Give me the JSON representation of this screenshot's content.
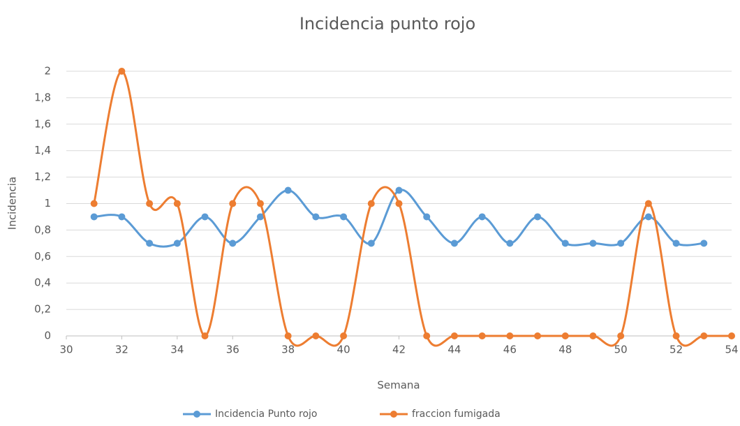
{
  "chart_data": {
    "type": "scatter",
    "title": "Incidencia punto rojo",
    "xlabel": "Semana",
    "ylabel": "Incidencia",
    "xlim": [
      30,
      54
    ],
    "xticks": [
      30,
      32,
      34,
      36,
      38,
      40,
      42,
      44,
      46,
      48,
      50,
      52,
      54
    ],
    "ylim": [
      0,
      2
    ],
    "yticks": [
      0,
      {
        "value": 0.2,
        "label": "0,2"
      },
      {
        "value": 0.4,
        "label": "0,4"
      },
      {
        "value": 0.6,
        "label": "0,6"
      },
      {
        "value": 0.8,
        "label": "0,8"
      },
      1,
      {
        "value": 1.2,
        "label": "1,2"
      },
      {
        "value": 1.4,
        "label": "1,4"
      },
      {
        "value": 1.6,
        "label": "1,6"
      },
      {
        "value": 1.8,
        "label": "1,8"
      },
      2
    ],
    "grid": true,
    "smooth": true,
    "legend": "bottom",
    "series": [
      {
        "name": "Incidencia Punto rojo",
        "color": "#5b9bd5",
        "x": [
          31,
          32,
          33,
          34,
          35,
          36,
          37,
          38,
          39,
          40,
          41,
          42,
          43,
          44,
          45,
          46,
          47,
          48,
          49,
          50,
          51,
          52,
          53
        ],
        "values": [
          0.9,
          0.9,
          0.7,
          0.7,
          0.9,
          0.7,
          0.9,
          1.1,
          0.9,
          0.9,
          0.7,
          1.1,
          0.9,
          0.7,
          0.9,
          0.7,
          0.9,
          0.7,
          0.7,
          0.7,
          0.9,
          0.7,
          0.7
        ]
      },
      {
        "name": "fraccion fumigada",
        "color": "#ed7d31",
        "x": [
          31,
          32,
          33,
          34,
          35,
          36,
          37,
          38,
          39,
          40,
          41,
          42,
          43,
          44,
          45,
          46,
          47,
          48,
          49,
          50,
          51,
          52,
          53,
          54
        ],
        "values": [
          1,
          2,
          1,
          1,
          0,
          1,
          1,
          0,
          0,
          0,
          1,
          1,
          0,
          0,
          0,
          0,
          0,
          0,
          0,
          0,
          1,
          0,
          0,
          0
        ]
      }
    ]
  }
}
